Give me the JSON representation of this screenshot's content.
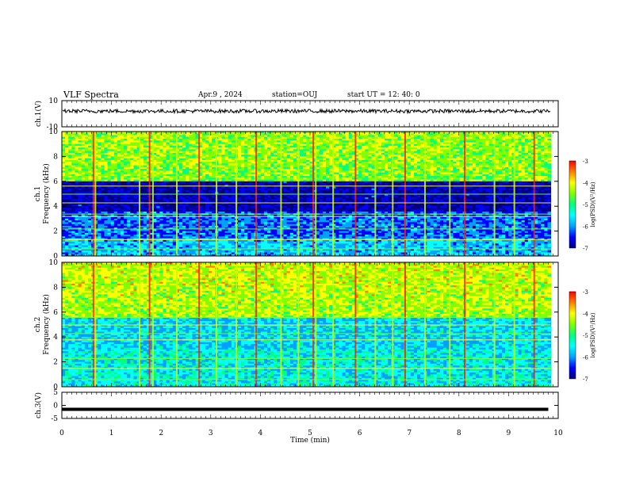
{
  "header": {
    "title": "VLF Spectra",
    "date": "Apr.9 , 2024",
    "station": "station=OUJ",
    "start": "start UT = 12: 40: 0"
  },
  "colors": {
    "colormap": [
      "#000080",
      "#0000ff",
      "#00a0ff",
      "#00ffff",
      "#00ff80",
      "#80ff00",
      "#ffff00",
      "#ff8000",
      "#ff0000"
    ],
    "trace": "#000000"
  },
  "chart_data": [
    {
      "type": "line",
      "ylabel": "ch.1(V)",
      "ylim": [
        -10,
        10
      ],
      "yticks": [
        "10",
        "-10"
      ],
      "xlim": [
        0,
        10
      ],
      "description": "noisy waveform around ~2 V"
    },
    {
      "type": "heatmap",
      "ylabel": "ch.1 Frequency (kHz)",
      "ylim": [
        0,
        10
      ],
      "yticks": [
        "0",
        "2",
        "4",
        "6",
        "8",
        "10"
      ],
      "xlim": [
        0,
        10
      ],
      "colorbar": {
        "label": "log(PSD)(V²/Hz)",
        "range": [
          -7,
          -3
        ],
        "ticks": [
          "-3",
          "-4",
          "-5",
          "-6",
          "-7"
        ]
      }
    },
    {
      "type": "heatmap",
      "ylabel": "ch.2 Frequency (kHz)",
      "ylim": [
        0,
        10
      ],
      "yticks": [
        "0",
        "2",
        "4",
        "6",
        "8",
        "10"
      ],
      "xlim": [
        0,
        10
      ],
      "colorbar": {
        "label": "log(PSD)(V²/Hz)",
        "range": [
          -7,
          -3
        ],
        "ticks": [
          "-3",
          "-4",
          "-5",
          "-6",
          "-7"
        ]
      }
    },
    {
      "type": "line",
      "ylabel": "ch.3(V)",
      "ylim": [
        -5,
        5
      ],
      "yticks": [
        "5",
        "0",
        "-5"
      ],
      "xlim": [
        0,
        10
      ],
      "xlabel": "Time (min)",
      "xticks": [
        "0",
        "1",
        "2",
        "3",
        "4",
        "5",
        "6",
        "7",
        "8",
        "9",
        "10"
      ],
      "values": [
        [
          0,
          -1.5
        ],
        [
          9.8,
          -1.5
        ]
      ]
    }
  ]
}
